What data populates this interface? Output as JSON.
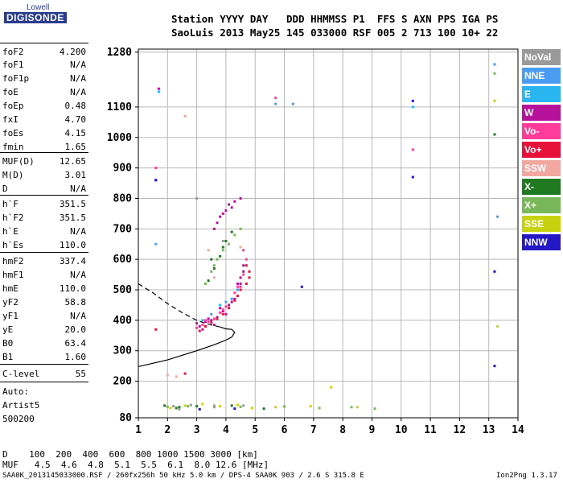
{
  "logo": {
    "top": "Lowell",
    "bottom": "DIGISONDE"
  },
  "header": {
    "line1": "Station YYYY DAY   DDD HHMMSS P1  FFS S AXN PPS IGA PS",
    "line2": "SaoLuis 2013 May25 145 033000 RSF 005 2 713 100 10+ 22"
  },
  "params": [
    {
      "label": "foF2",
      "value": "4.200"
    },
    {
      "label": "foF1",
      "value": "N/A"
    },
    {
      "label": "foF1p",
      "value": "N/A"
    },
    {
      "label": "foE",
      "value": "N/A"
    },
    {
      "label": "foEp",
      "value": "0.48"
    },
    {
      "label": "fxI",
      "value": "4.70"
    },
    {
      "label": "foEs",
      "value": "4.15"
    },
    {
      "label": "fmin",
      "value": "1.65"
    },
    {
      "label": "MUF(D)",
      "value": "12.65"
    },
    {
      "label": "M(D)",
      "value": "3.01"
    },
    {
      "label": "D",
      "value": "N/A"
    },
    {
      "label": "h`F",
      "value": "351.5"
    },
    {
      "label": "h`F2",
      "value": "351.5"
    },
    {
      "label": "h`E",
      "value": "N/A"
    },
    {
      "label": "h`Es",
      "value": "110.0"
    },
    {
      "label": "hmF2",
      "value": "337.4"
    },
    {
      "label": "hmF1",
      "value": "N/A"
    },
    {
      "label": "hmE",
      "value": "110.0"
    },
    {
      "label": "yF2",
      "value": "58.8"
    },
    {
      "label": "yF1",
      "value": "N/A"
    },
    {
      "label": "yE",
      "value": "20.0"
    },
    {
      "label": "B0",
      "value": "63.4"
    },
    {
      "label": "B1",
      "value": "1.60"
    },
    {
      "label": "C-level",
      "value": "55"
    }
  ],
  "auto": {
    "line1": "Auto:",
    "line2": "Artist5",
    "line3": "500200"
  },
  "legend": [
    {
      "label": "NoVal",
      "color": "#9a9a9a"
    },
    {
      "label": "NNE",
      "color": "#4a9cf2"
    },
    {
      "label": "E",
      "color": "#29b5f0"
    },
    {
      "label": "W",
      "color": "#b6119b"
    },
    {
      "label": "Vo-",
      "color": "#ff3c9a"
    },
    {
      "label": "Vo+",
      "color": "#e8113a"
    },
    {
      "label": "SSW",
      "color": "#f2a8a0"
    },
    {
      "label": "X-",
      "color": "#1f7a1f"
    },
    {
      "label": "X+",
      "color": "#78b85a"
    },
    {
      "label": "SSE",
      "color": "#c8d20f"
    },
    {
      "label": "NNW",
      "color": "#2418c4"
    }
  ],
  "dtable": {
    "row1": "D    100  200  400  600  800 1000 1500 3000 [km]",
    "row2": "MUF   4.5  4.6  4.8  5.1  5.5  6.1  8.0 12.6 [MHz]"
  },
  "footer": {
    "left": "SAA0K_2013145033000.RSF / 260fx256h 50 kHz 5.0 km / DPS-4 SAA0K 903 / 2.6 S 315.8 E",
    "right": "Ion2Png 1.3.17"
  },
  "chart_data": {
    "type": "scatter",
    "title": "",
    "xlabel": "",
    "ylabel": "",
    "xlim": [
      1,
      14
    ],
    "ylim": [
      80,
      1290
    ],
    "x_ticks": [
      1,
      2,
      3,
      4,
      5,
      6,
      7,
      8,
      9,
      10,
      11,
      12,
      13,
      14
    ],
    "y_ticks": [
      80,
      200,
      300,
      400,
      500,
      600,
      700,
      800,
      900,
      1000,
      1100,
      1280
    ],
    "grid": true,
    "series": [
      {
        "name": "W",
        "color": "#b6119b",
        "points": [
          [
            3.1,
            380
          ],
          [
            3.3,
            395
          ],
          [
            3.5,
            400
          ],
          [
            3.7,
            410
          ],
          [
            3.9,
            430
          ],
          [
            4.1,
            450
          ],
          [
            4.3,
            470
          ],
          [
            4.4,
            500
          ],
          [
            4.5,
            520
          ],
          [
            4.6,
            560
          ],
          [
            3.2,
            370
          ],
          [
            3.6,
            385
          ],
          [
            4.0,
            420
          ],
          [
            4.2,
            460
          ],
          [
            4.5,
            540
          ],
          [
            4.6,
            580
          ],
          [
            3.0,
            390
          ],
          [
            3.4,
            405
          ],
          [
            3.8,
            440
          ],
          [
            4.4,
            520
          ],
          [
            3.7,
            720
          ],
          [
            3.8,
            740
          ],
          [
            3.9,
            750
          ],
          [
            4.0,
            760
          ],
          [
            4.1,
            780
          ],
          [
            4.2,
            770
          ],
          [
            3.6,
            700
          ],
          [
            4.3,
            790
          ],
          [
            4.5,
            800
          ],
          [
            1.6,
            860
          ],
          [
            1.7,
            1160
          ]
        ]
      },
      {
        "name": "Vo-",
        "color": "#ff3c9a",
        "points": [
          [
            3.0,
            375
          ],
          [
            3.2,
            385
          ],
          [
            3.4,
            395
          ],
          [
            3.6,
            405
          ],
          [
            3.8,
            425
          ],
          [
            4.0,
            445
          ],
          [
            4.2,
            470
          ],
          [
            4.3,
            490
          ],
          [
            4.5,
            510
          ],
          [
            4.6,
            550
          ],
          [
            4.7,
            600
          ],
          [
            4.6,
            630
          ],
          [
            3.3,
            400
          ],
          [
            3.9,
            435
          ],
          [
            4.4,
            510
          ],
          [
            1.6,
            900
          ],
          [
            5.7,
            1130
          ],
          [
            10.4,
            960
          ]
        ]
      },
      {
        "name": "Vo+",
        "color": "#e8113a",
        "points": [
          [
            3.1,
            365
          ],
          [
            3.3,
            380
          ],
          [
            3.5,
            392
          ],
          [
            3.7,
            405
          ],
          [
            3.9,
            420
          ],
          [
            4.1,
            440
          ],
          [
            4.3,
            465
          ],
          [
            4.4,
            480
          ],
          [
            4.5,
            500
          ],
          [
            4.7,
            520
          ],
          [
            4.8,
            540
          ],
          [
            4.8,
            560
          ],
          [
            4.7,
            580
          ],
          [
            1.6,
            370
          ],
          [
            2.6,
            225
          ]
        ]
      },
      {
        "name": "X-",
        "color": "#1f7a1f",
        "points": [
          [
            3.4,
            530
          ],
          [
            3.6,
            570
          ],
          [
            3.8,
            610
          ],
          [
            3.9,
            640
          ],
          [
            4.0,
            660
          ],
          [
            4.2,
            690
          ],
          [
            3.5,
            600
          ],
          [
            1.9,
            120
          ],
          [
            2.4,
            115
          ],
          [
            3.0,
            118
          ],
          [
            4.2,
            120
          ],
          [
            2.3,
            112
          ],
          [
            5.3,
            110
          ],
          [
            13.2,
            1010
          ]
        ]
      },
      {
        "name": "X+",
        "color": "#78b85a",
        "points": [
          [
            3.3,
            520
          ],
          [
            3.5,
            560
          ],
          [
            3.7,
            600
          ],
          [
            3.9,
            630
          ],
          [
            4.1,
            650
          ],
          [
            4.3,
            680
          ],
          [
            4.5,
            700
          ],
          [
            3.6,
            580
          ],
          [
            2.0,
            116
          ],
          [
            2.7,
            118
          ],
          [
            3.6,
            120
          ],
          [
            4.5,
            116
          ],
          [
            6.0,
            117
          ],
          [
            7.2,
            112
          ],
          [
            8.3,
            115
          ],
          [
            9.1,
            110
          ],
          [
            13.2,
            1210
          ]
        ]
      },
      {
        "name": "SSE",
        "color": "#c8d20f",
        "points": [
          [
            2.1,
            112
          ],
          [
            2.6,
            120
          ],
          [
            3.2,
            125
          ],
          [
            3.8,
            118
          ],
          [
            4.4,
            122
          ],
          [
            4.9,
            112
          ],
          [
            5.7,
            115
          ],
          [
            6.9,
            118
          ],
          [
            7.6,
            180
          ],
          [
            8.5,
            115
          ],
          [
            13.2,
            1120
          ],
          [
            13.3,
            380
          ],
          [
            2.6,
            1070
          ]
        ]
      },
      {
        "name": "NNE",
        "color": "#4a9cf2",
        "points": [
          [
            3.5,
            420
          ],
          [
            4.0,
            460
          ],
          [
            4.4,
            500
          ],
          [
            5.7,
            1110
          ],
          [
            6.3,
            1110
          ],
          [
            13.2,
            1240
          ],
          [
            13.3,
            740
          ],
          [
            1.6,
            650
          ]
        ]
      },
      {
        "name": "E",
        "color": "#29b5f0",
        "points": [
          [
            3.2,
            400
          ],
          [
            3.8,
            450
          ],
          [
            4.2,
            470
          ],
          [
            10.4,
            1100
          ],
          [
            1.7,
            1150
          ]
        ]
      },
      {
        "name": "SSW",
        "color": "#f2a8a0",
        "points": [
          [
            2.0,
            220
          ],
          [
            2.3,
            215
          ],
          [
            3.4,
            630
          ],
          [
            3.6,
            540
          ],
          [
            4.5,
            640
          ],
          [
            2.6,
            1070
          ]
        ]
      },
      {
        "name": "NNW",
        "color": "#2418c4",
        "points": [
          [
            1.6,
            860
          ],
          [
            10.4,
            1120
          ],
          [
            13.2,
            250
          ],
          [
            13.2,
            560
          ],
          [
            10.4,
            870
          ],
          [
            4.3,
            110
          ],
          [
            3.1,
            108
          ],
          [
            6.6,
            510
          ]
        ]
      },
      {
        "name": "NoVal",
        "color": "#9a9a9a",
        "points": [
          [
            2.2,
            118
          ],
          [
            2.8,
            122
          ],
          [
            3.6,
            115
          ],
          [
            4.6,
            120
          ],
          [
            2.4,
            108
          ],
          [
            3.0,
            800
          ],
          [
            3.9,
            660
          ]
        ]
      }
    ],
    "curves": [
      {
        "name": "profile-solid",
        "style": "solid",
        "points": [
          [
            1.0,
            248
          ],
          [
            2.0,
            270
          ],
          [
            3.0,
            300
          ],
          [
            3.6,
            320
          ],
          [
            4.0,
            335
          ],
          [
            4.2,
            345
          ],
          [
            4.3,
            360
          ],
          [
            4.2,
            370
          ],
          [
            4.0,
            372
          ],
          [
            3.8,
            378
          ]
        ]
      },
      {
        "name": "profile-dashed",
        "style": "dashed",
        "points": [
          [
            1.0,
            520
          ],
          [
            1.5,
            490
          ],
          [
            2.0,
            455
          ],
          [
            2.5,
            425
          ],
          [
            3.0,
            400
          ],
          [
            3.4,
            387
          ],
          [
            3.8,
            378
          ]
        ]
      }
    ]
  }
}
